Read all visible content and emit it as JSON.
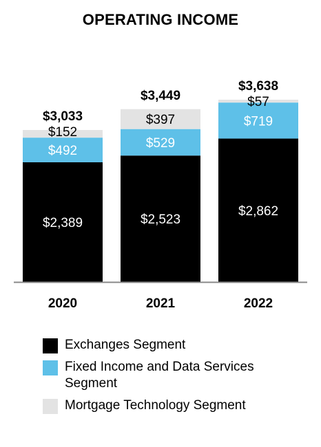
{
  "chart_data": {
    "type": "bar",
    "stacked": true,
    "title": "OPERATING INCOME",
    "categories": [
      "2020",
      "2021",
      "2022"
    ],
    "series": [
      {
        "name": "Exchanges Segment",
        "color": "#000000",
        "label_color": "#ffffff",
        "values": [
          2389,
          2523,
          2862
        ],
        "labels": [
          "$2,389",
          "$2,523",
          "$2,862"
        ]
      },
      {
        "name": "Fixed Income and Data Services Segment",
        "color": "#5ec0e8",
        "label_color": "#ffffff",
        "values": [
          492,
          529,
          719
        ],
        "labels": [
          "$492",
          "$529",
          "$719"
        ]
      },
      {
        "name": "Mortgage Technology Segment",
        "color": "#e3e3e3",
        "label_color": "#000000",
        "values": [
          152,
          397,
          57
        ],
        "labels": [
          "$152",
          "$397",
          "$57"
        ]
      }
    ],
    "totals": [
      3033,
      3449,
      3638
    ],
    "total_labels": [
      "$3,033",
      "$3,449",
      "$3,638"
    ],
    "ylim": [
      0,
      3638
    ],
    "grid": false,
    "legend_position": "bottom"
  }
}
